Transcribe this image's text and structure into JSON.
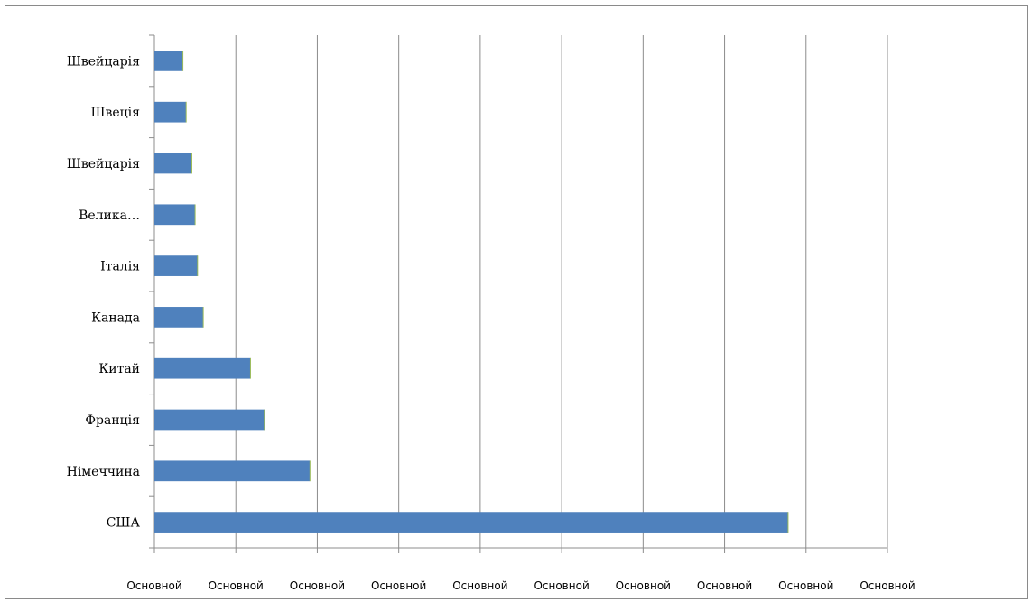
{
  "colors": {
    "bar": "#4f81bd",
    "bar_edge": "#9bbb59",
    "grid": "#8c8c8c",
    "axis": "#8c8c8c"
  },
  "chart_data": {
    "type": "bar",
    "orientation": "horizontal",
    "title": "",
    "xlabel": "",
    "ylabel": "",
    "categories": [
      "Швейцарія",
      "Швеція",
      "Швейцарія",
      "Велика…",
      "Італія",
      "Канада",
      "Китай",
      "Франція",
      "Німеччина",
      "США"
    ],
    "values": [
      3.5,
      3.9,
      4.6,
      5.0,
      5.3,
      6.0,
      11.8,
      13.5,
      19.1,
      77.8
    ],
    "xlim": [
      0,
      90
    ],
    "xtick_labels": [
      "Основной",
      "Основной",
      "Основной",
      "Основной",
      "Основной",
      "Основной",
      "Основной",
      "Основной",
      "Основной",
      "Основной"
    ],
    "grid": "vertical",
    "legend": "none"
  }
}
